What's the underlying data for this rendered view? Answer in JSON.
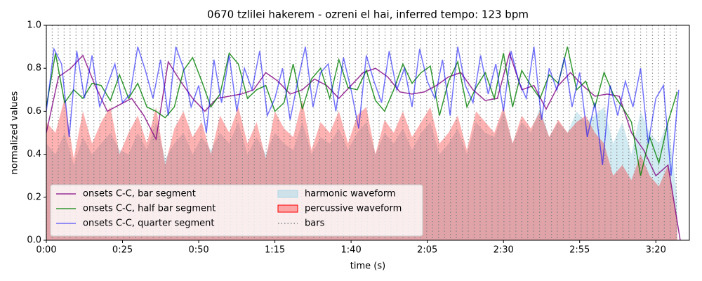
{
  "chart_data": {
    "type": "line",
    "title": "0670 tzlilei hakerem - ozreni el hai, inferred tempo: 123 bpm",
    "xlabel": "time (s)",
    "ylabel": "normalized values",
    "xlim": [
      0,
      211
    ],
    "ylim": [
      0,
      1
    ],
    "xticks": [
      {
        "value": 0,
        "label": "0:00"
      },
      {
        "value": 25,
        "label": "0:25"
      },
      {
        "value": 50,
        "label": "0:50"
      },
      {
        "value": 75,
        "label": "1:15"
      },
      {
        "value": 100,
        "label": "1:40"
      },
      {
        "value": 125,
        "label": "2:05"
      },
      {
        "value": 150,
        "label": "2:30"
      },
      {
        "value": 175,
        "label": "2:55"
      },
      {
        "value": 200,
        "label": "3:20"
      }
    ],
    "yticks": [
      {
        "value": 0,
        "label": "0.0"
      },
      0.2,
      0.4,
      0.6,
      0.8,
      {
        "value": 1,
        "label": "1.0"
      }
    ],
    "legend": "lower left",
    "series": [
      {
        "name": "onsets C-C, bar segment",
        "type": "line",
        "color": "#800080",
        "alpha": 0.8,
        "x": [
          0,
          4,
          8,
          12,
          16,
          20,
          24,
          28,
          32,
          36,
          40,
          44,
          48,
          52,
          56,
          60,
          64,
          68,
          72,
          76,
          80,
          84,
          88,
          92,
          96,
          100,
          104,
          108,
          112,
          116,
          120,
          124,
          128,
          132,
          136,
          140,
          144,
          148,
          152,
          156,
          160,
          164,
          168,
          172,
          176,
          180,
          184,
          188,
          192,
          196,
          200,
          204,
          208
        ],
        "values": [
          0.5,
          0.76,
          0.8,
          0.86,
          0.72,
          0.6,
          0.63,
          0.66,
          0.58,
          0.47,
          0.83,
          0.74,
          0.66,
          0.6,
          0.66,
          0.67,
          0.68,
          0.7,
          0.78,
          0.74,
          0.68,
          0.7,
          0.75,
          0.72,
          0.66,
          0.72,
          0.78,
          0.8,
          0.76,
          0.69,
          0.68,
          0.69,
          0.72,
          0.76,
          0.78,
          0.7,
          0.65,
          0.66,
          0.87,
          0.7,
          0.72,
          0.61,
          0.72,
          0.78,
          0.72,
          0.67,
          0.68,
          0.67,
          0.5,
          0.42,
          0.3,
          0.35,
          0
        ]
      },
      {
        "name": "onsets C-C, half bar segment",
        "type": "line",
        "color": "#008000",
        "alpha": 0.8,
        "x": [
          0,
          3,
          6,
          9,
          12,
          15,
          18,
          21,
          24,
          27,
          30,
          33,
          36,
          39,
          42,
          45,
          48,
          51,
          54,
          57,
          60,
          63,
          66,
          69,
          72,
          75,
          78,
          81,
          84,
          87,
          90,
          93,
          96,
          99,
          102,
          105,
          108,
          111,
          114,
          117,
          120,
          123,
          126,
          129,
          132,
          135,
          138,
          141,
          144,
          147,
          150,
          153,
          156,
          159,
          162,
          165,
          168,
          171,
          174,
          177,
          180,
          183,
          186,
          189,
          192,
          195,
          198,
          201,
          204,
          207
        ],
        "values": [
          0.62,
          0.87,
          0.64,
          0.7,
          0.66,
          0.73,
          0.72,
          0.65,
          0.77,
          0.66,
          0.73,
          0.62,
          0.6,
          0.57,
          0.62,
          0.79,
          0.85,
          0.74,
          0.62,
          0.68,
          0.87,
          0.82,
          0.66,
          0.7,
          0.72,
          0.6,
          0.64,
          0.82,
          0.61,
          0.75,
          0.8,
          0.66,
          0.84,
          0.71,
          0.7,
          0.79,
          0.65,
          0.6,
          0.7,
          0.82,
          0.73,
          0.78,
          0.81,
          0.58,
          0.74,
          0.83,
          0.62,
          0.71,
          0.78,
          0.66,
          0.87,
          0.62,
          0.79,
          0.72,
          0.66,
          0.77,
          0.73,
          0.9,
          0.7,
          0.74,
          0.62,
          0.78,
          0.68,
          0.62,
          0.55,
          0.3,
          0.48,
          0.36,
          0.55,
          0.69
        ]
      },
      {
        "name": "onsets C-C, quarter segment",
        "type": "line",
        "color": "#0000ff",
        "alpha": 0.55,
        "x": [
          0,
          2.5,
          5,
          7.5,
          10,
          12.5,
          15,
          17.5,
          20,
          22.5,
          25,
          27.5,
          30,
          32.5,
          35,
          37.5,
          40,
          42.5,
          45,
          47.5,
          50,
          52.5,
          55,
          57.5,
          60,
          62.5,
          65,
          67.5,
          70,
          72.5,
          75,
          77.5,
          80,
          82.5,
          85,
          87.5,
          90,
          92.5,
          95,
          97.5,
          100,
          102.5,
          105,
          107.5,
          110,
          112.5,
          115,
          117.5,
          120,
          122.5,
          125,
          127.5,
          130,
          132.5,
          135,
          137.5,
          140,
          142.5,
          145,
          147.5,
          150,
          152.5,
          155,
          157.5,
          160,
          162.5,
          165,
          167.5,
          170,
          172.5,
          175,
          177.5,
          180,
          182.5,
          185,
          187.5,
          190,
          192.5,
          195,
          197.5,
          200,
          202.5,
          205,
          207.5
        ],
        "values": [
          0.6,
          0.89,
          0.82,
          0.48,
          0.88,
          0.66,
          0.86,
          0.62,
          0.72,
          0.82,
          0.64,
          0.68,
          0.9,
          0.79,
          0.66,
          0.84,
          0.58,
          0.9,
          0.8,
          0.62,
          0.72,
          0.5,
          0.84,
          0.64,
          0.86,
          0.6,
          0.8,
          0.7,
          0.88,
          0.58,
          0.66,
          0.8,
          0.56,
          0.74,
          0.9,
          0.62,
          0.78,
          0.82,
          0.6,
          0.85,
          0.7,
          0.52,
          0.86,
          0.74,
          0.64,
          0.88,
          0.7,
          0.8,
          0.62,
          0.89,
          0.74,
          0.66,
          0.84,
          0.58,
          0.9,
          0.72,
          0.64,
          0.86,
          0.68,
          0.82,
          0.6,
          0.88,
          0.74,
          0.66,
          0.9,
          0.56,
          0.8,
          0.7,
          0.85,
          0.62,
          0.78,
          0.48,
          0.64,
          0.35,
          0.72,
          0.58,
          0.74,
          0.62,
          0.8,
          0.45,
          0.66,
          0.72,
          0.3,
          0.7
        ]
      },
      {
        "name": "harmonic waveform",
        "type": "area",
        "color": "#add8e6",
        "alpha": 0.55,
        "x": [
          0,
          3,
          6,
          9,
          12,
          15,
          18,
          21,
          24,
          27,
          30,
          33,
          36,
          39,
          42,
          45,
          48,
          51,
          54,
          57,
          60,
          63,
          66,
          69,
          72,
          75,
          78,
          81,
          84,
          87,
          90,
          93,
          96,
          99,
          102,
          105,
          108,
          111,
          114,
          117,
          120,
          123,
          126,
          129,
          132,
          135,
          138,
          141,
          144,
          147,
          150,
          153,
          156,
          159,
          162,
          165,
          168,
          171,
          174,
          177,
          180,
          183,
          186,
          189,
          192,
          195,
          198,
          201,
          204,
          207
        ],
        "values": [
          0.45,
          0.4,
          0.5,
          0.35,
          0.48,
          0.4,
          0.45,
          0.5,
          0.42,
          0.4,
          0.5,
          0.42,
          0.55,
          0.38,
          0.45,
          0.5,
          0.4,
          0.48,
          0.42,
          0.5,
          0.45,
          0.55,
          0.4,
          0.48,
          0.4,
          0.5,
          0.45,
          0.42,
          0.55,
          0.4,
          0.48,
          0.45,
          0.52,
          0.42,
          0.5,
          0.55,
          0.4,
          0.5,
          0.45,
          0.52,
          0.42,
          0.5,
          0.55,
          0.4,
          0.45,
          0.52,
          0.4,
          0.55,
          0.5,
          0.48,
          0.6,
          0.45,
          0.55,
          0.5,
          0.62,
          0.48,
          0.55,
          0.5,
          0.6,
          0.55,
          0.58,
          0.62,
          0.45,
          0.55,
          0.4,
          0.6,
          0.5,
          0.45,
          0.55,
          0.2
        ]
      },
      {
        "name": "percussive waveform",
        "type": "area",
        "color": "#ff0000",
        "alpha": 0.3,
        "x": [
          0,
          3,
          6,
          9,
          12,
          15,
          18,
          21,
          24,
          27,
          30,
          33,
          36,
          39,
          42,
          45,
          48,
          51,
          54,
          57,
          60,
          63,
          66,
          69,
          72,
          75,
          78,
          81,
          84,
          87,
          90,
          93,
          96,
          99,
          102,
          105,
          108,
          111,
          114,
          117,
          120,
          123,
          126,
          129,
          132,
          135,
          138,
          141,
          144,
          147,
          150,
          153,
          156,
          159,
          162,
          165,
          168,
          171,
          174,
          177,
          180,
          183,
          186,
          189,
          192,
          195,
          198,
          201,
          204,
          207
        ],
        "values": [
          0.55,
          0.5,
          0.66,
          0.38,
          0.6,
          0.45,
          0.55,
          0.62,
          0.4,
          0.5,
          0.58,
          0.45,
          0.62,
          0.35,
          0.52,
          0.6,
          0.48,
          0.55,
          0.4,
          0.58,
          0.5,
          0.62,
          0.45,
          0.55,
          0.38,
          0.6,
          0.52,
          0.48,
          0.65,
          0.42,
          0.55,
          0.5,
          0.6,
          0.45,
          0.58,
          0.62,
          0.4,
          0.56,
          0.5,
          0.6,
          0.48,
          0.55,
          0.62,
          0.45,
          0.5,
          0.58,
          0.42,
          0.6,
          0.55,
          0.5,
          0.62,
          0.45,
          0.58,
          0.52,
          0.6,
          0.48,
          0.56,
          0.5,
          0.55,
          0.58,
          0.5,
          0.45,
          0.3,
          0.35,
          0.28,
          0.4,
          0.3,
          0.25,
          0.35,
          0.1
        ]
      },
      {
        "name": "bars",
        "type": "vline",
        "color": "#808080",
        "alpha": 1,
        "x": [
          0,
          1.95,
          3.9,
          5.85,
          7.8,
          9.75,
          11.7,
          13.65,
          15.6,
          17.55,
          19.5,
          21.45,
          23.4,
          25.35,
          27.3,
          29.25,
          31.2,
          33.15,
          35.1,
          37.05,
          39,
          40.95,
          42.9,
          44.85,
          46.8,
          48.75,
          50.7,
          52.65,
          54.6,
          56.55,
          58.5,
          60.45,
          62.4,
          64.35,
          66.3,
          68.25,
          70.2,
          72.15,
          74.1,
          76.05,
          78,
          79.95,
          81.9,
          83.85,
          85.8,
          87.75,
          89.7,
          91.65,
          93.6,
          95.55,
          97.5,
          99.45,
          101.4,
          103.35,
          105.3,
          107.25,
          109.2,
          111.15,
          113.1,
          115.05,
          117,
          118.95,
          120.9,
          122.85,
          124.8,
          126.75,
          128.7,
          130.65,
          132.6,
          134.55,
          136.5,
          138.45,
          140.4,
          142.35,
          144.3,
          146.25,
          148.2,
          150.15,
          152.1,
          154.05,
          156,
          157.95,
          159.9,
          161.85,
          163.8,
          165.75,
          167.7,
          169.65,
          171.6,
          173.55,
          175.5,
          177.45,
          179.4,
          181.35,
          183.3,
          185.25,
          187.2,
          189.15,
          191.1,
          193.05,
          195,
          196.95,
          198.9,
          200.85,
          202.8,
          204.75,
          206.7
        ]
      }
    ]
  }
}
